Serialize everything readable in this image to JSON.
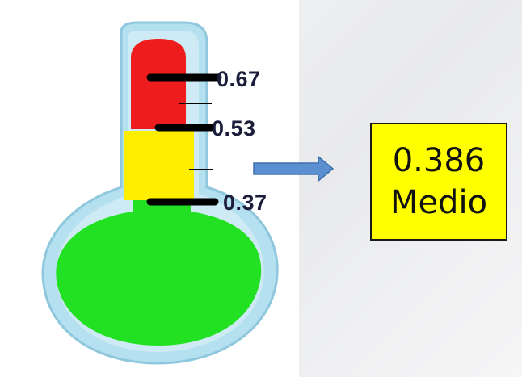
{
  "thermometer": {
    "scale_labels": [
      "0.67",
      "0.53",
      "0.37"
    ],
    "fill_zones": [
      {
        "zone": "top",
        "color": "#ee1c1c"
      },
      {
        "zone": "middle",
        "color": "#ffee00"
      },
      {
        "zone": "bulb",
        "color": "#22e122"
      }
    ],
    "glass_color": "#b2dfee"
  },
  "arrow": {
    "icon": "right-arrow-icon",
    "color": "#5b8fd0"
  },
  "result": {
    "value": "0.386",
    "level": "Medio",
    "background": "#ffff00"
  }
}
